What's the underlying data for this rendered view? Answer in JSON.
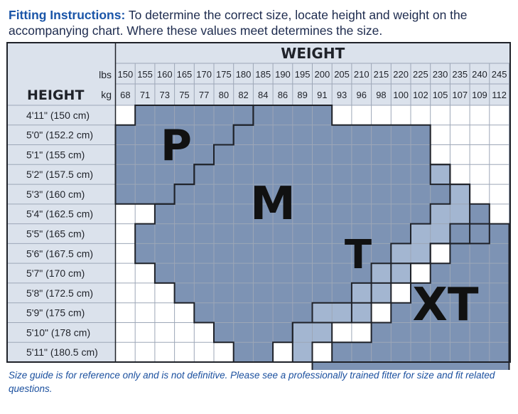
{
  "intro": {
    "lead": "Fitting Instructions:",
    "text": "To determine the correct size, locate height and weight on the accompanying chart. Where these values meet determines the size."
  },
  "chart": {
    "header_weight": "WEIGHT",
    "header_height": "HEIGHT",
    "lbs_label": "lbs",
    "kg_label": "kg",
    "lbs": [
      "150",
      "155",
      "160",
      "165",
      "170",
      "175",
      "180",
      "185",
      "190",
      "195",
      "200",
      "205",
      "210",
      "215",
      "220",
      "225",
      "230",
      "235",
      "240",
      "245"
    ],
    "kg": [
      "68",
      "71",
      "73",
      "75",
      "77",
      "80",
      "82",
      "84",
      "86",
      "89",
      "91",
      "93",
      "96",
      "98",
      "100",
      "102",
      "105",
      "107",
      "109",
      "112"
    ],
    "heights": [
      "4'11\" (150 cm)",
      "5'0\"  (152.2 cm)",
      "5'1\"  (155 cm)",
      "5'2\"  (157.5 cm)",
      "5'3\"  (160 cm)",
      "5'4\"  (162.5 cm)",
      "5'5\"  (165 cm)",
      "5'6\"  (167.5 cm)",
      "5'7\"  (170 cm)",
      "5'8\"  (172.5 cm)",
      "5'9\"  (175 cm)",
      "5'10\"  (178 cm)",
      "5'11\"  (180.5 cm)"
    ],
    "sizes": [
      {
        "label": "P",
        "color": "#7d93b4",
        "ranges": [
          [
            1,
            6
          ],
          [
            0,
            5
          ],
          [
            0,
            4
          ],
          [
            0,
            3
          ],
          [
            0,
            2
          ]
        ]
      },
      {
        "label": "M",
        "color": "#7d93b4",
        "ranges": [
          [
            7,
            10
          ],
          [
            6,
            15
          ],
          [
            5,
            15
          ],
          [
            4,
            16
          ],
          [
            3,
            17
          ],
          [
            2,
            18
          ],
          [
            1,
            18
          ],
          [
            1,
            15
          ],
          [
            2,
            13
          ],
          [
            3,
            12
          ],
          [
            4,
            11
          ],
          [
            5,
            8
          ],
          [
            6,
            7
          ]
        ]
      },
      {
        "label": "T",
        "color": "#a3b6d1",
        "ranges": [
          [
            16,
            16
          ],
          [
            17,
            17
          ],
          [
            16,
            17
          ],
          [
            15,
            16
          ],
          [
            14,
            15
          ],
          [
            13,
            14
          ],
          [
            12,
            13
          ],
          [
            10,
            12
          ],
          [
            9,
            10
          ],
          [
            9,
            9
          ]
        ]
      },
      {
        "label": "XT",
        "color": "#7d93b4",
        "ranges": [
          [
            18,
            19
          ],
          [
            17,
            19
          ],
          [
            16,
            19
          ],
          [
            15,
            19
          ],
          [
            14,
            19
          ],
          [
            13,
            19
          ],
          [
            11,
            19
          ],
          [
            10,
            19
          ]
        ]
      }
    ],
    "size_start_rows": [
      0,
      0,
      3,
      6
    ],
    "colors": {
      "border": "#1f2229",
      "grid": "#9da7b7",
      "header_bg": "#dbe2ec",
      "cell_bg": "#ffffff",
      "text": "#1f2229"
    }
  },
  "note": "Size guide is for reference only and is not definitive. Please see a professionally trained fitter for size and fit related questions."
}
